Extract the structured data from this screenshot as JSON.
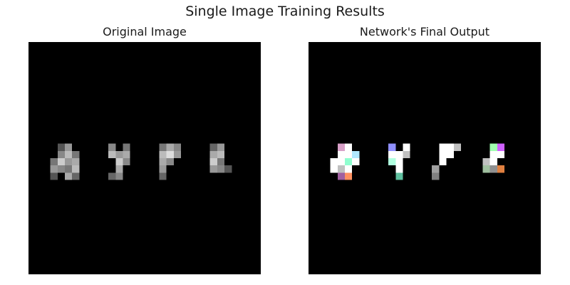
{
  "figure": {
    "title": "Single Image Training Results"
  },
  "panels": [
    {
      "title": "Original Image",
      "depicted_text": "hype"
    },
    {
      "title": "Network's Final Output"
    }
  ],
  "colors": {
    "background": "#ffffff",
    "image_background": "#000000"
  }
}
